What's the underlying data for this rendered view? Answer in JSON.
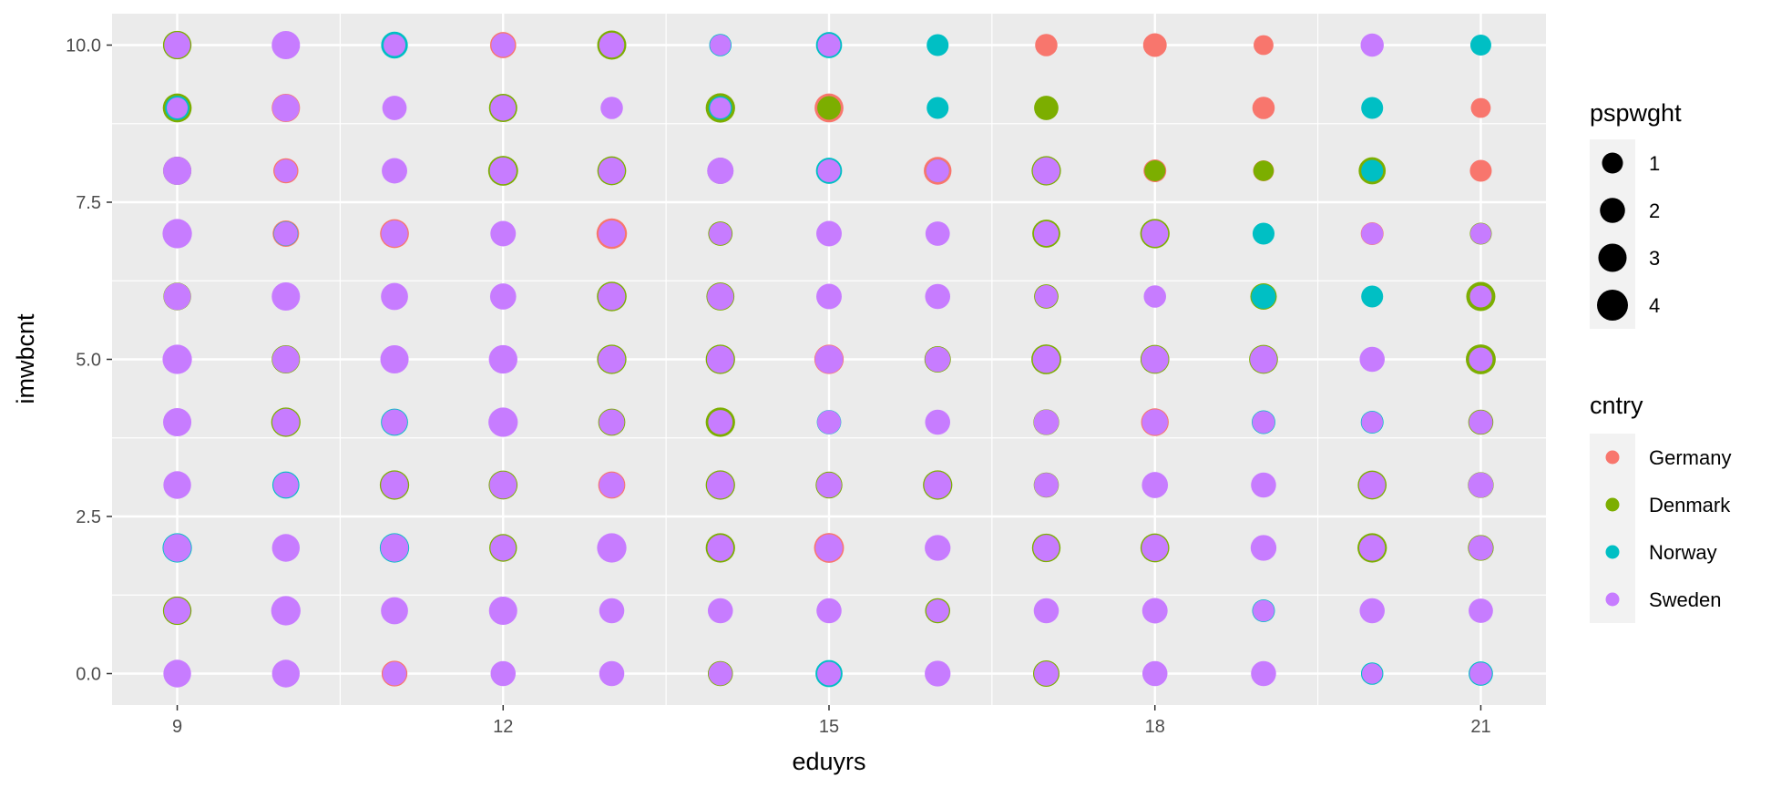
{
  "chart_data": {
    "type": "scatter",
    "xlabel": "eduyrs",
    "ylabel": "imwbcnt",
    "xlim": [
      8.4,
      21.6
    ],
    "ylim": [
      -0.5,
      10.5
    ],
    "x_ticks": [
      9,
      12,
      15,
      18,
      21
    ],
    "x_tick_labels": [
      "9",
      "12",
      "15",
      "18",
      "21"
    ],
    "y_ticks": [
      0,
      2.5,
      5,
      7.5,
      10
    ],
    "y_tick_labels": [
      "0.0",
      "2.5",
      "5.0",
      "7.5",
      "10.0"
    ],
    "grid": true,
    "size_legend": {
      "title": "pspwght",
      "values": [
        1,
        2,
        3,
        4
      ],
      "labels": [
        "1",
        "2",
        "3",
        "4"
      ]
    },
    "color_legend": {
      "title": "cntry",
      "labels": [
        "Germany",
        "Denmark",
        "Norway",
        "Sweden"
      ],
      "colors": [
        "#F8766D",
        "#7CAE00",
        "#00BFC4",
        "#C77CFF"
      ]
    },
    "legend_position": "right",
    "series": [
      {
        "name": "Germany",
        "color": "#F8766D",
        "points": [
          [
            11,
            10,
            1.5
          ],
          [
            12,
            10,
            2.3
          ],
          [
            17,
            10,
            1.3
          ],
          [
            18,
            10,
            1.6
          ],
          [
            19,
            10,
            0.8
          ],
          [
            10,
            9,
            3.0
          ],
          [
            15,
            9,
            3.2
          ],
          [
            19,
            9,
            1.3
          ],
          [
            21,
            9,
            0.8
          ],
          [
            10,
            8,
            2.0
          ],
          [
            16,
            8,
            2.8
          ],
          [
            18,
            8,
            1.4
          ],
          [
            19,
            8,
            1.0
          ],
          [
            21,
            8,
            1.2
          ],
          [
            10,
            7,
            2.4
          ],
          [
            11,
            7,
            3.2
          ],
          [
            13,
            7,
            3.8
          ],
          [
            20,
            7,
            1.4
          ],
          [
            15,
            5,
            3.4
          ],
          [
            18,
            4,
            2.8
          ],
          [
            13,
            3,
            2.6
          ],
          [
            15,
            2,
            3.6
          ],
          [
            11,
            0,
            2.2
          ]
        ]
      },
      {
        "name": "Denmark",
        "color": "#7CAE00",
        "points": [
          [
            9,
            10,
            3.1
          ],
          [
            13,
            10,
            3.3
          ],
          [
            9,
            9,
            3.2
          ],
          [
            12,
            9,
            3.0
          ],
          [
            14,
            9,
            3.4
          ],
          [
            15,
            9,
            1.6
          ],
          [
            17,
            9,
            1.8
          ],
          [
            9,
            8,
            3.0
          ],
          [
            12,
            8,
            3.6
          ],
          [
            13,
            8,
            3.2
          ],
          [
            14,
            8,
            2.3
          ],
          [
            17,
            8,
            3.4
          ],
          [
            18,
            8,
            1.0
          ],
          [
            19,
            8,
            0.9
          ],
          [
            20,
            8,
            2.6
          ],
          [
            14,
            7,
            1.8
          ],
          [
            17,
            7,
            2.9
          ],
          [
            18,
            7,
            3.4
          ],
          [
            21,
            7,
            1.2
          ],
          [
            9,
            6,
            2.8
          ],
          [
            13,
            6,
            3.5
          ],
          [
            14,
            6,
            2.9
          ],
          [
            17,
            6,
            1.8
          ],
          [
            19,
            6,
            2.4
          ],
          [
            21,
            6,
            3.3
          ],
          [
            10,
            5,
            3.0
          ],
          [
            12,
            5,
            2.8
          ],
          [
            13,
            5,
            3.4
          ],
          [
            14,
            5,
            3.4
          ],
          [
            16,
            5,
            2.4
          ],
          [
            17,
            5,
            3.6
          ],
          [
            18,
            5,
            3.2
          ],
          [
            19,
            5,
            3.2
          ],
          [
            21,
            5,
            3.6
          ],
          [
            10,
            4,
            3.4
          ],
          [
            13,
            4,
            2.6
          ],
          [
            14,
            4,
            3.4
          ],
          [
            17,
            4,
            2.2
          ],
          [
            21,
            4,
            2.0
          ],
          [
            11,
            3,
            3.4
          ],
          [
            12,
            3,
            3.2
          ],
          [
            14,
            3,
            3.4
          ],
          [
            15,
            3,
            2.5
          ],
          [
            16,
            3,
            3.4
          ],
          [
            17,
            3,
            2.0
          ],
          [
            20,
            3,
            3.2
          ],
          [
            21,
            3,
            2.2
          ],
          [
            12,
            2,
            2.8
          ],
          [
            14,
            2,
            3.4
          ],
          [
            17,
            2,
            3.1
          ],
          [
            18,
            2,
            3.2
          ],
          [
            20,
            2,
            3.4
          ],
          [
            21,
            2,
            2.2
          ],
          [
            9,
            1,
            3.1
          ],
          [
            16,
            1,
            2.0
          ],
          [
            14,
            0,
            2.0
          ],
          [
            17,
            0,
            2.4
          ]
        ]
      },
      {
        "name": "Norway",
        "color": "#00BFC4",
        "points": [
          [
            11,
            10,
            2.5
          ],
          [
            14,
            10,
            1.3
          ],
          [
            15,
            10,
            2.3
          ],
          [
            16,
            10,
            1.2
          ],
          [
            21,
            10,
            1.0
          ],
          [
            9,
            9,
            1.8
          ],
          [
            14,
            9,
            1.6
          ],
          [
            16,
            9,
            1.2
          ],
          [
            20,
            9,
            1.2
          ],
          [
            15,
            8,
            2.3
          ],
          [
            16,
            8,
            1.4
          ],
          [
            20,
            8,
            1.2
          ],
          [
            10,
            7,
            1.8
          ],
          [
            19,
            7,
            1.2
          ],
          [
            19,
            6,
            1.8
          ],
          [
            20,
            6,
            1.2
          ],
          [
            11,
            4,
            2.6
          ],
          [
            15,
            4,
            1.8
          ],
          [
            19,
            4,
            1.6
          ],
          [
            20,
            4,
            1.4
          ],
          [
            21,
            4,
            1.3
          ],
          [
            10,
            3,
            2.6
          ],
          [
            9,
            2,
            3.4
          ],
          [
            11,
            2,
            3.4
          ],
          [
            19,
            1,
            1.4
          ],
          [
            15,
            0,
            2.6
          ],
          [
            20,
            0,
            1.3
          ],
          [
            21,
            0,
            1.8
          ]
        ]
      },
      {
        "name": "Sweden",
        "color": "#C77CFF",
        "points": [
          [
            9,
            10,
            2.3
          ],
          [
            10,
            10,
            3.0
          ],
          [
            11,
            10,
            1.2
          ],
          [
            12,
            10,
            1.6
          ],
          [
            13,
            10,
            2.0
          ],
          [
            14,
            10,
            1.0
          ],
          [
            15,
            10,
            1.4
          ],
          [
            20,
            10,
            1.5
          ],
          [
            9,
            9,
            1.0
          ],
          [
            10,
            9,
            2.6
          ],
          [
            11,
            9,
            1.8
          ],
          [
            12,
            9,
            2.1
          ],
          [
            13,
            9,
            1.3
          ],
          [
            14,
            9,
            1.0
          ],
          [
            9,
            8,
            3.0
          ],
          [
            10,
            8,
            1.4
          ],
          [
            11,
            8,
            2.1
          ],
          [
            12,
            8,
            2.5
          ],
          [
            13,
            8,
            2.4
          ],
          [
            14,
            8,
            2.4
          ],
          [
            15,
            8,
            1.4
          ],
          [
            16,
            8,
            1.4
          ],
          [
            17,
            8,
            2.6
          ],
          [
            9,
            7,
            3.4
          ],
          [
            10,
            7,
            1.6
          ],
          [
            11,
            7,
            2.4
          ],
          [
            12,
            7,
            2.1
          ],
          [
            13,
            7,
            2.4
          ],
          [
            14,
            7,
            1.4
          ],
          [
            15,
            7,
            2.1
          ],
          [
            16,
            7,
            1.8
          ],
          [
            17,
            7,
            1.9
          ],
          [
            18,
            7,
            2.4
          ],
          [
            20,
            7,
            1.2
          ],
          [
            21,
            7,
            1.0
          ],
          [
            9,
            6,
            2.6
          ],
          [
            10,
            6,
            3.0
          ],
          [
            11,
            6,
            2.6
          ],
          [
            12,
            6,
            2.3
          ],
          [
            13,
            6,
            2.6
          ],
          [
            14,
            6,
            2.4
          ],
          [
            15,
            6,
            2.1
          ],
          [
            16,
            6,
            2.0
          ],
          [
            17,
            6,
            1.4
          ],
          [
            18,
            6,
            1.3
          ],
          [
            21,
            6,
            1.2
          ],
          [
            9,
            5,
            3.4
          ],
          [
            10,
            5,
            2.6
          ],
          [
            11,
            5,
            3.0
          ],
          [
            12,
            5,
            3.1
          ],
          [
            13,
            5,
            2.6
          ],
          [
            14,
            5,
            2.6
          ],
          [
            15,
            5,
            2.9
          ],
          [
            16,
            5,
            2.0
          ],
          [
            17,
            5,
            2.6
          ],
          [
            18,
            5,
            2.6
          ],
          [
            19,
            5,
            2.6
          ],
          [
            20,
            5,
            2.0
          ],
          [
            21,
            5,
            1.6
          ],
          [
            9,
            4,
            3.0
          ],
          [
            10,
            4,
            2.6
          ],
          [
            11,
            4,
            2.1
          ],
          [
            12,
            4,
            3.4
          ],
          [
            13,
            4,
            2.1
          ],
          [
            14,
            4,
            1.8
          ],
          [
            15,
            4,
            1.6
          ],
          [
            16,
            4,
            2.0
          ],
          [
            17,
            4,
            2.0
          ],
          [
            18,
            4,
            2.2
          ],
          [
            19,
            4,
            1.3
          ],
          [
            20,
            4,
            1.1
          ],
          [
            21,
            4,
            1.6
          ],
          [
            9,
            3,
            2.8
          ],
          [
            10,
            3,
            2.0
          ],
          [
            11,
            3,
            2.6
          ],
          [
            12,
            3,
            2.6
          ],
          [
            13,
            3,
            2.0
          ],
          [
            14,
            3,
            2.6
          ],
          [
            15,
            3,
            2.0
          ],
          [
            16,
            3,
            2.6
          ],
          [
            17,
            3,
            1.8
          ],
          [
            18,
            3,
            2.3
          ],
          [
            19,
            3,
            2.0
          ],
          [
            20,
            3,
            2.4
          ],
          [
            21,
            3,
            2.0
          ],
          [
            9,
            2,
            2.8
          ],
          [
            10,
            2,
            2.8
          ],
          [
            11,
            2,
            2.8
          ],
          [
            12,
            2,
            2.1
          ],
          [
            13,
            2,
            3.4
          ],
          [
            14,
            2,
            2.3
          ],
          [
            15,
            2,
            2.6
          ],
          [
            16,
            2,
            2.2
          ],
          [
            17,
            2,
            2.3
          ],
          [
            18,
            2,
            2.4
          ],
          [
            19,
            2,
            2.2
          ],
          [
            20,
            2,
            2.2
          ],
          [
            21,
            2,
            1.8
          ],
          [
            9,
            1,
            2.4
          ],
          [
            10,
            1,
            3.4
          ],
          [
            11,
            1,
            2.6
          ],
          [
            12,
            1,
            3.0
          ],
          [
            13,
            1,
            2.0
          ],
          [
            14,
            1,
            2.0
          ],
          [
            15,
            1,
            2.0
          ],
          [
            16,
            1,
            1.4
          ],
          [
            17,
            1,
            2.0
          ],
          [
            18,
            1,
            2.1
          ],
          [
            19,
            1,
            1.1
          ],
          [
            20,
            1,
            2.0
          ],
          [
            21,
            1,
            1.8
          ],
          [
            9,
            0,
            2.8
          ],
          [
            10,
            0,
            2.8
          ],
          [
            11,
            0,
            1.6
          ],
          [
            12,
            0,
            2.0
          ],
          [
            13,
            0,
            2.0
          ],
          [
            14,
            0,
            1.6
          ],
          [
            15,
            0,
            1.6
          ],
          [
            16,
            0,
            2.2
          ],
          [
            17,
            0,
            1.8
          ],
          [
            18,
            0,
            2.0
          ],
          [
            19,
            0,
            2.0
          ],
          [
            20,
            0,
            0.9
          ],
          [
            21,
            0,
            1.3
          ]
        ]
      }
    ]
  }
}
